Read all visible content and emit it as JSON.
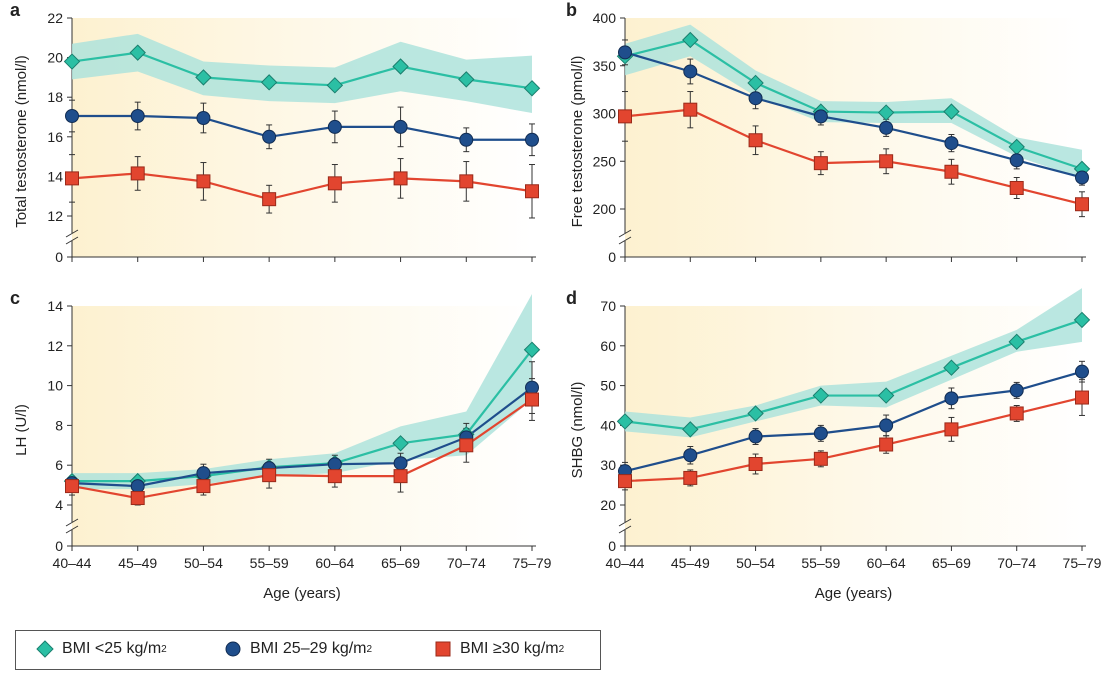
{
  "colors": {
    "bmi_lt25": "#2bbfa4",
    "bmi_25_29": "#1f4e8c",
    "bmi_ge30": "#e2452f",
    "band": "#aee3dc",
    "panel_bg_left": "#fdf1d0",
    "panel_bg_right": "#ffffff"
  },
  "legend": {
    "items": [
      {
        "key": "bmi_lt25",
        "label": "BMI <25 kg/m",
        "sup": "2",
        "marker": "diamond"
      },
      {
        "key": "bmi_25_29",
        "label": "BMI 25–29 kg/m",
        "sup": "2",
        "marker": "circle"
      },
      {
        "key": "bmi_ge30",
        "label": "BMI ≥30 kg/m",
        "sup": "2",
        "marker": "square"
      }
    ]
  },
  "chart_data": [
    {
      "panel": "a",
      "type": "line",
      "categories": [
        "40–44",
        "45–49",
        "50–54",
        "55–59",
        "60–64",
        "65–69",
        "70–74",
        "75–79"
      ],
      "ylabel": "Total testosterone (nmol/l)",
      "xlabel": "",
      "yticks": [
        0,
        12,
        14,
        16,
        18,
        20,
        22
      ],
      "ylim": [
        12,
        22
      ],
      "axis_break": true,
      "series": [
        {
          "name": "BMI <25 kg/m²",
          "values": [
            19.8,
            20.25,
            19.0,
            18.75,
            18.6,
            19.55,
            18.9,
            18.45
          ],
          "band_lo": [
            18.9,
            19.3,
            18.1,
            17.8,
            17.7,
            18.3,
            17.8,
            17.2
          ],
          "band_hi": [
            20.7,
            21.2,
            19.8,
            19.6,
            19.5,
            20.8,
            19.9,
            20.1
          ]
        },
        {
          "name": "BMI 25–29 kg/m²",
          "values": [
            17.05,
            17.05,
            16.95,
            16.0,
            16.5,
            16.5,
            15.85,
            15.85
          ],
          "err": [
            0.8,
            0.7,
            0.75,
            0.6,
            0.8,
            1.0,
            0.6,
            0.8
          ]
        },
        {
          "name": "BMI ≥30 kg/m²",
          "values": [
            13.9,
            14.15,
            13.75,
            12.85,
            13.65,
            13.9,
            13.75,
            13.25
          ],
          "err": [
            1.2,
            0.85,
            0.95,
            0.7,
            0.95,
            1.0,
            1.0,
            1.35
          ]
        }
      ]
    },
    {
      "panel": "b",
      "type": "line",
      "categories": [
        "40–44",
        "45–49",
        "50–54",
        "55–59",
        "60–64",
        "65–69",
        "70–74",
        "75–79"
      ],
      "ylabel": "Free testosterone (pmol/l)",
      "xlabel": "",
      "yticks": [
        0,
        200,
        250,
        300,
        350,
        400
      ],
      "ylim": [
        200,
        400
      ],
      "axis_break": true,
      "series": [
        {
          "name": "BMI <25 kg/m²",
          "values": [
            360,
            377,
            332,
            302,
            301,
            302,
            265,
            242
          ],
          "band_lo": [
            340,
            360,
            318,
            291,
            290,
            290,
            255,
            232
          ],
          "band_hi": [
            373,
            393,
            345,
            313,
            312,
            316,
            275,
            262
          ]
        },
        {
          "name": "BMI 25–29 kg/m²",
          "values": [
            364,
            344,
            316,
            297,
            285,
            269,
            251,
            233
          ],
          "err": [
            13,
            13,
            11,
            9,
            9,
            9,
            9,
            8
          ]
        },
        {
          "name": "BMI ≥30 kg/m²",
          "values": [
            297,
            304,
            272,
            248,
            250,
            239,
            222,
            205
          ],
          "err": [
            26,
            19,
            15,
            12,
            13,
            13,
            11,
            13
          ]
        }
      ]
    },
    {
      "panel": "c",
      "type": "line",
      "categories": [
        "40–44",
        "45–49",
        "50–54",
        "55–59",
        "60–64",
        "65–69",
        "70–74",
        "75–79"
      ],
      "ylabel": "LH (U/l)",
      "xlabel": "Age (years)",
      "yticks": [
        0,
        4,
        6,
        8,
        10,
        12,
        14
      ],
      "ylim": [
        4,
        14
      ],
      "axis_break": true,
      "series": [
        {
          "name": "BMI <25 kg/m²",
          "values": [
            5.2,
            5.2,
            5.45,
            5.9,
            6.1,
            7.1,
            7.55,
            11.8
          ],
          "band_lo": [
            4.8,
            4.8,
            5.05,
            5.45,
            5.6,
            6.25,
            6.5,
            9.3
          ],
          "band_hi": [
            5.6,
            5.6,
            5.8,
            6.3,
            6.6,
            7.95,
            8.7,
            14.6
          ]
        },
        {
          "name": "BMI 25–29 kg/m²",
          "values": [
            5.1,
            4.95,
            5.6,
            5.85,
            6.05,
            6.1,
            7.4,
            9.9
          ],
          "err": [
            0.35,
            0.4,
            0.45,
            0.45,
            0.45,
            0.5,
            0.7,
            1.3
          ]
        },
        {
          "name": "BMI ≥30 kg/m²",
          "values": [
            4.95,
            4.35,
            4.95,
            5.5,
            5.45,
            5.45,
            7.0,
            9.3
          ],
          "err": [
            0.45,
            0.35,
            0.45,
            0.65,
            0.55,
            0.8,
            0.85,
            1.05
          ]
        }
      ]
    },
    {
      "panel": "d",
      "type": "line",
      "categories": [
        "40–44",
        "45–49",
        "50–54",
        "55–59",
        "60–64",
        "65–69",
        "70–74",
        "75–79"
      ],
      "ylabel": "SHBG (nmol/l)",
      "xlabel": "Age (years)",
      "yticks": [
        0,
        20,
        30,
        40,
        50,
        60,
        70
      ],
      "ylim": [
        20,
        70
      ],
      "axis_break": true,
      "series": [
        {
          "name": "BMI <25 kg/m²",
          "values": [
            41,
            39,
            43,
            47.5,
            47.5,
            54.5,
            61,
            66.5
          ],
          "band_lo": [
            38.5,
            37,
            41,
            45,
            44.5,
            51.5,
            58.5,
            61
          ],
          "band_hi": [
            43.5,
            42,
            45,
            50,
            51,
            57.5,
            64,
            74.5
          ]
        },
        {
          "name": "BMI 25–29 kg/m²",
          "values": [
            28.5,
            32.5,
            37.2,
            38,
            40,
            46.8,
            48.8,
            53.5
          ],
          "err": [
            2.2,
            2.2,
            2.0,
            2.0,
            2.6,
            2.6,
            2.0,
            2.6
          ]
        },
        {
          "name": "BMI ≥30 kg/m²",
          "values": [
            26,
            26.8,
            30.3,
            31.6,
            35.2,
            39,
            43,
            47
          ],
          "err": [
            2.2,
            2.0,
            2.5,
            2.0,
            2.2,
            3.0,
            2.0,
            4.5
          ]
        }
      ]
    }
  ]
}
